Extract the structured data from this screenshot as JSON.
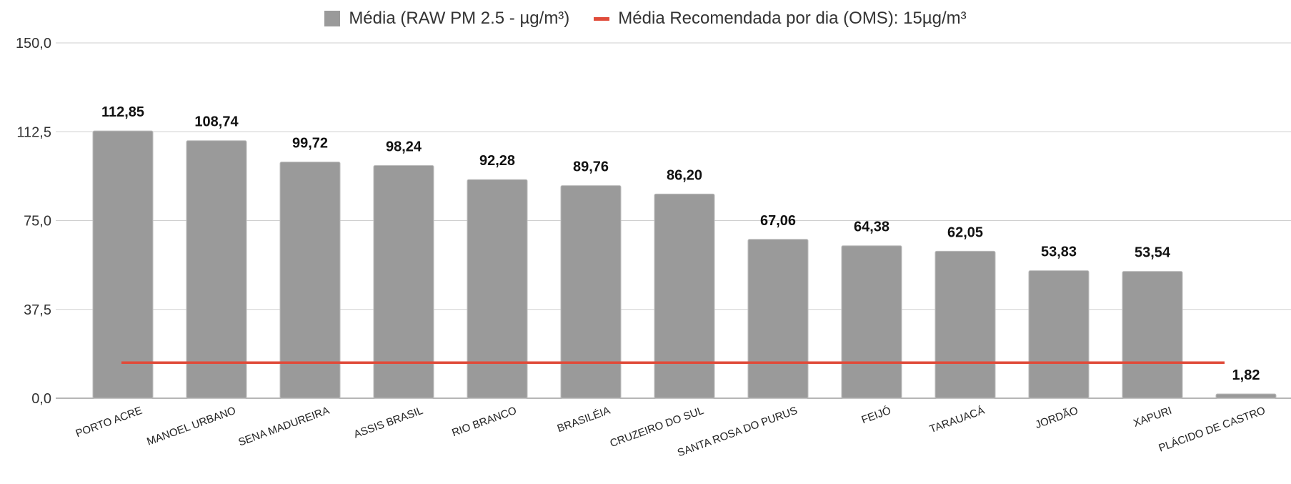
{
  "legend": {
    "bar_series": "Média (RAW PM 2.5 - µg/m³)",
    "line_series": "Média Recomendada por dia (OMS): 15µg/m³"
  },
  "colors": {
    "bar": "#9a9a9a",
    "line": "#e04b3a",
    "grid": "#cfcfcf"
  },
  "chart_data": {
    "type": "bar",
    "title": "",
    "xlabel": "",
    "ylabel": "",
    "ylim": [
      0,
      150
    ],
    "yticks": [
      0,
      37.5,
      75,
      112.5,
      150
    ],
    "ytick_labels": [
      "0,0",
      "37,5",
      "75,0",
      "112,5",
      "150,0"
    ],
    "grid": true,
    "legend_position": "top",
    "categories": [
      "PORTO ACRE",
      "MANOEL URBANO",
      "SENA MADUREIRA",
      "ASSIS BRASIL",
      "RIO BRANCO",
      "BRASILÉIA",
      "CRUZEIRO DO SUL",
      "SANTA ROSA DO PURUS",
      "FEIJÓ",
      "TARAUACÁ",
      "JORDÃO",
      "XAPURI",
      "PLÁCIDO DE CASTRO"
    ],
    "series": [
      {
        "name": "Média (RAW PM 2.5 - µg/m³)",
        "type": "bar",
        "values": [
          112.85,
          108.74,
          99.72,
          98.24,
          92.28,
          89.76,
          86.2,
          67.06,
          64.38,
          62.05,
          53.83,
          53.54,
          1.82
        ],
        "labels": [
          "112,85",
          "108,74",
          "99,72",
          "98,24",
          "92,28",
          "89,76",
          "86,20",
          "67,06",
          "64,38",
          "62,05",
          "53,83",
          "53,54",
          "1,82"
        ]
      },
      {
        "name": "Média Recomendada por dia (OMS): 15µg/m³",
        "type": "line",
        "value": 15
      }
    ]
  }
}
